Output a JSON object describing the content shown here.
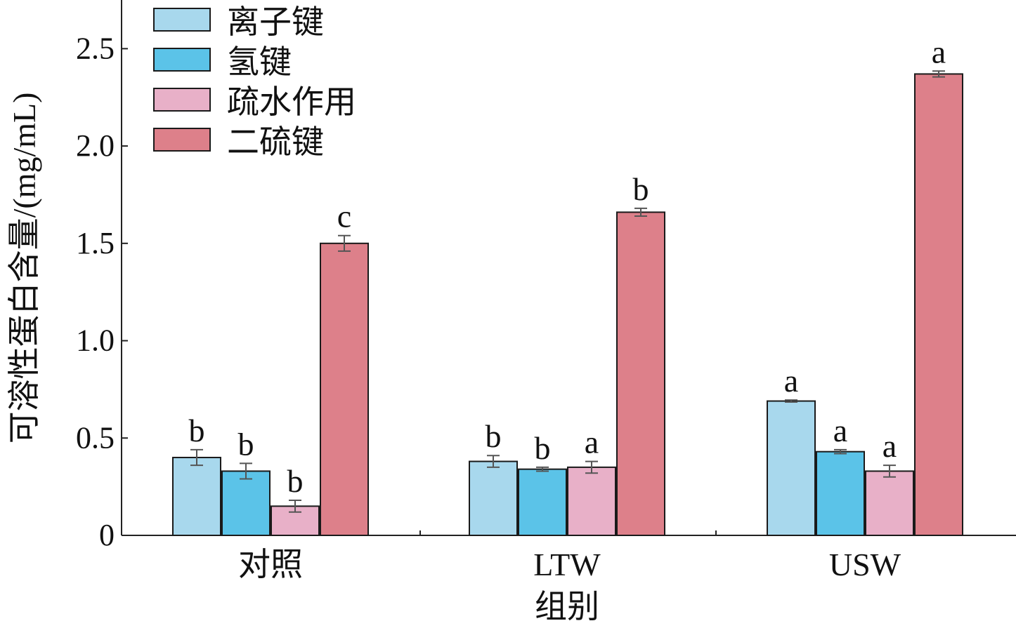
{
  "chart_data": {
    "type": "bar",
    "title": "",
    "xlabel": "组别",
    "ylabel": "可溶性蛋白含量/(mg/mL)",
    "ylim": [
      0,
      2.75
    ],
    "yticks": [
      0,
      0.5,
      1.0,
      1.5,
      2.0,
      2.5
    ],
    "ytick_labels": [
      "0",
      "0.5",
      "1.0",
      "1.5",
      "2.0",
      "2.5"
    ],
    "categories": [
      "对照",
      "LTW",
      "USW"
    ],
    "grid": false,
    "legend_position": "top-left",
    "series": [
      {
        "name": "离子键",
        "color": "#a8d8ed",
        "values": [
          0.4,
          0.38,
          0.69
        ],
        "errors": [
          0.04,
          0.03,
          0.005
        ],
        "labels": [
          "b",
          "b",
          "a"
        ]
      },
      {
        "name": "氢键",
        "color": "#5bc3e8",
        "values": [
          0.33,
          0.34,
          0.43
        ],
        "errors": [
          0.04,
          0.01,
          0.01
        ],
        "labels": [
          "b",
          "b",
          "a"
        ]
      },
      {
        "name": "疏水作用",
        "color": "#e8b0c8",
        "values": [
          0.15,
          0.35,
          0.33
        ],
        "errors": [
          0.03,
          0.03,
          0.03
        ],
        "labels": [
          "b",
          "a",
          "a"
        ]
      },
      {
        "name": "二硫键",
        "color": "#dd808a",
        "values": [
          1.5,
          1.66,
          2.37
        ],
        "errors": [
          0.04,
          0.02,
          0.015
        ],
        "labels": [
          "c",
          "b",
          "a"
        ]
      }
    ]
  }
}
